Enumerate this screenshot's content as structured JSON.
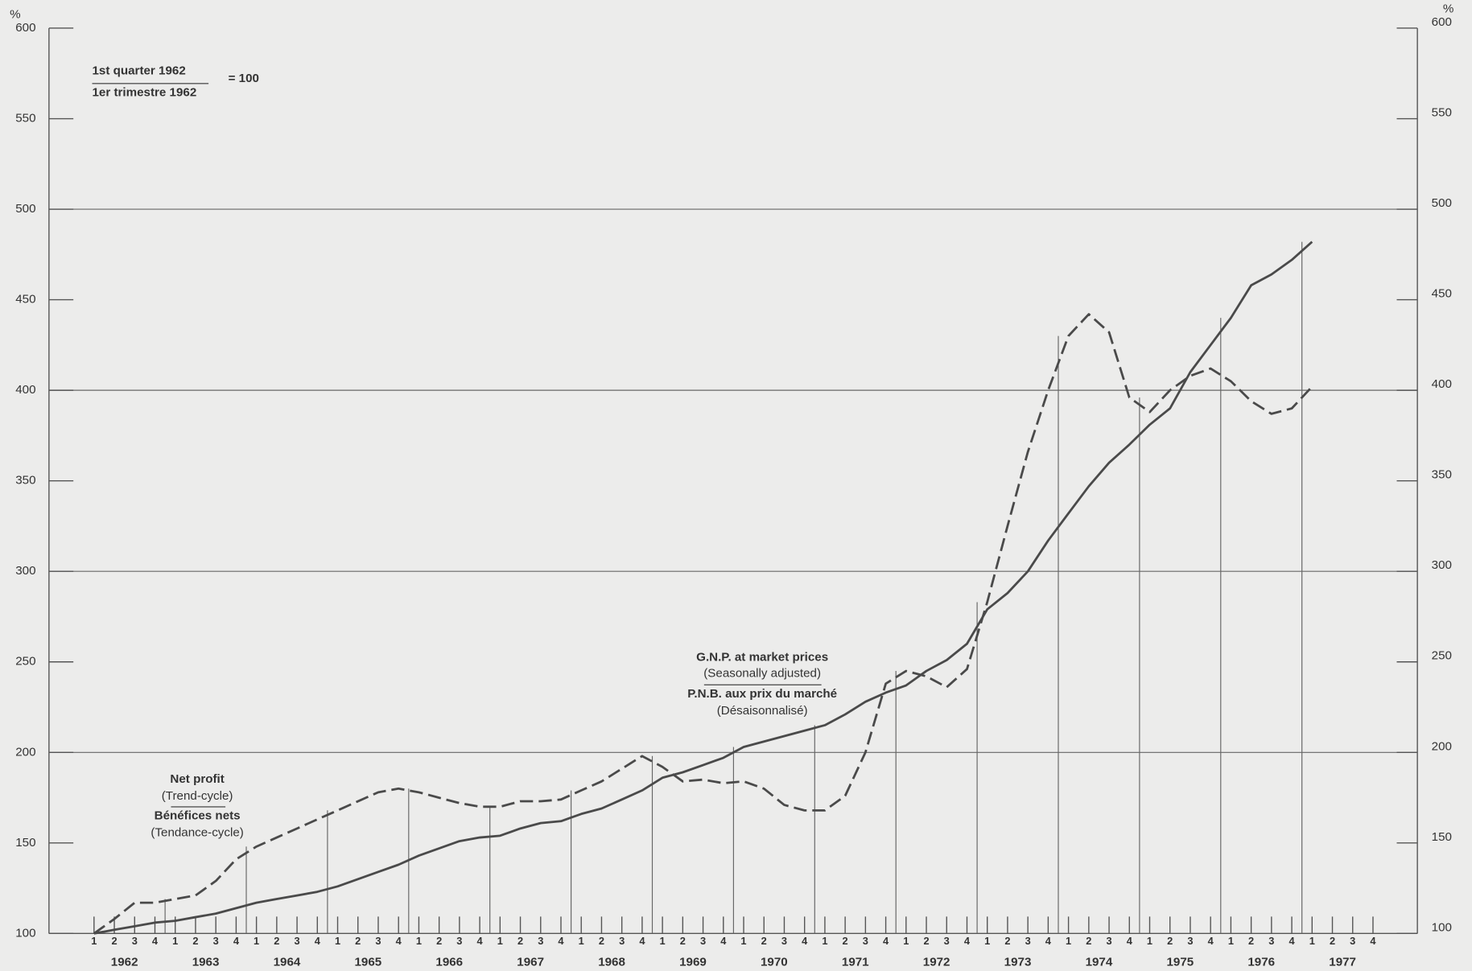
{
  "chart_data": {
    "type": "line",
    "ylabel": "%",
    "y2label": "%",
    "ylim": [
      100,
      600
    ],
    "yticks": [
      100,
      150,
      200,
      250,
      300,
      350,
      400,
      450,
      500,
      550,
      600
    ],
    "y2lim": [
      100,
      600
    ],
    "y2ticks": [
      100,
      150,
      200,
      250,
      300,
      350,
      400,
      450,
      500,
      550,
      600
    ],
    "ygrid": [
      200,
      300,
      400,
      500
    ],
    "years": [
      "1962",
      "1963",
      "1964",
      "1965",
      "1966",
      "1967",
      "1968",
      "1969",
      "1970",
      "1971",
      "1972",
      "1973",
      "1974",
      "1975",
      "1976",
      "1977"
    ],
    "categories": [
      "1",
      "2",
      "3",
      "4",
      "1",
      "2",
      "3",
      "4",
      "1",
      "2",
      "3",
      "4",
      "1",
      "2",
      "3",
      "4",
      "1",
      "2",
      "3",
      "4",
      "1",
      "2",
      "3",
      "4",
      "1",
      "2",
      "3",
      "4",
      "1",
      "2",
      "3",
      "4",
      "1",
      "2",
      "3",
      "4",
      "1",
      "2",
      "3",
      "4",
      "1",
      "2",
      "3",
      "4",
      "1",
      "2",
      "3",
      "4",
      "1",
      "2",
      "3",
      "4",
      "1",
      "2",
      "3",
      "4",
      "1",
      "2",
      "3",
      "4",
      "1",
      "2",
      "3",
      "4"
    ],
    "base_note": {
      "line1": "1st quarter 1962",
      "line2": "1er trimestre 1962",
      "equals": "= 100"
    },
    "series": [
      {
        "name": "G.N.P. at market prices",
        "note": "(Seasonally adjusted)",
        "name_fr": "P.N.B. aux prix du marché",
        "note_fr": "(Désaisonnalisé)",
        "color": "#4a4a4a",
        "dashed": false,
        "values": [
          100,
          102,
          104,
          106,
          107,
          109,
          111,
          114,
          117,
          119,
          121,
          123,
          126,
          130,
          134,
          138,
          143,
          147,
          151,
          153,
          154,
          158,
          161,
          162,
          166,
          169,
          174,
          179,
          186,
          189,
          193,
          197,
          203,
          206,
          209,
          212,
          215,
          221,
          228,
          233,
          237,
          245,
          251,
          260,
          279,
          288,
          300,
          317,
          332,
          347,
          360,
          370,
          381,
          390,
          410,
          425,
          440,
          458,
          464,
          472,
          482,
          null,
          null,
          null
        ]
      },
      {
        "name": "Net profit",
        "note": "(Trend-cycle)",
        "name_fr": "Bénéfices nets",
        "note_fr": "(Tendance-cycle)",
        "color": "#4a4a4a",
        "dashed": true,
        "values": [
          100,
          108,
          117,
          117,
          119,
          121,
          129,
          141,
          148,
          153,
          158,
          163,
          168,
          173,
          178,
          180,
          178,
          175,
          172,
          170,
          170,
          173,
          173,
          174,
          179,
          184,
          191,
          198,
          192,
          184,
          185,
          183,
          184,
          180,
          171,
          168,
          168,
          176,
          200,
          238,
          245,
          242,
          236,
          246,
          283,
          325,
          366,
          400,
          430,
          442,
          432,
          396,
          388,
          400,
          408,
          412,
          405,
          394,
          387,
          390,
          402,
          null,
          null,
          null
        ]
      }
    ]
  }
}
